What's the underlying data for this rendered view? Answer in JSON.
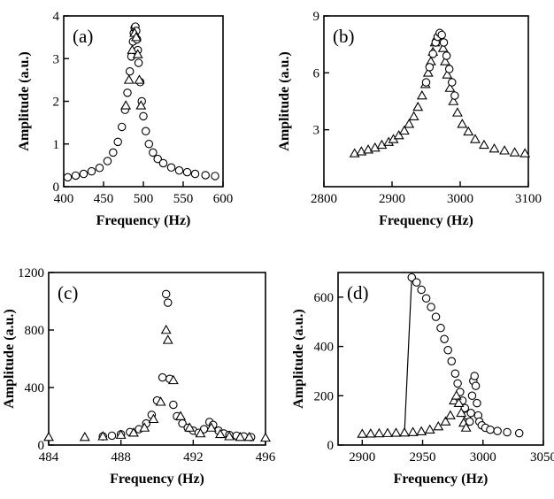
{
  "chart_data": [
    {
      "panel_label": "(a)",
      "type": "scatter",
      "xlabel": "Frequency (Hz)",
      "ylabel": "Amplitude (a.u.)",
      "xlim": [
        400,
        600
      ],
      "ylim": [
        0,
        4
      ],
      "xticks": [
        "400",
        "450",
        "500",
        "550",
        "600"
      ],
      "yticks": [
        "0",
        "1",
        "2",
        "3",
        "4"
      ],
      "series": [
        {
          "marker": "circle",
          "x": [
            405,
            415,
            425,
            435,
            445,
            455,
            462,
            468,
            473,
            477,
            480,
            483,
            485,
            487,
            488,
            489,
            490,
            491,
            492,
            493,
            494,
            496,
            498,
            500,
            503,
            507,
            512,
            518,
            525,
            535,
            545,
            555,
            565,
            578,
            590
          ],
          "y": [
            0.22,
            0.26,
            0.3,
            0.36,
            0.44,
            0.6,
            0.8,
            1.05,
            1.4,
            1.8,
            2.2,
            2.7,
            3.05,
            3.4,
            3.6,
            3.72,
            3.75,
            3.65,
            3.45,
            3.2,
            2.9,
            2.45,
            2.0,
            1.65,
            1.3,
            1.0,
            0.8,
            0.65,
            0.55,
            0.45,
            0.38,
            0.34,
            0.3,
            0.27,
            0.25
          ]
        },
        {
          "marker": "triangle",
          "x": [
            478,
            482,
            486,
            489,
            491,
            493,
            495,
            497
          ],
          "y": [
            1.9,
            2.5,
            3.2,
            3.6,
            3.5,
            3.1,
            2.5,
            1.9
          ]
        }
      ]
    },
    {
      "panel_label": "(b)",
      "type": "scatter",
      "xlabel": "Frequency (Hz)",
      "ylabel": "Amplitude (a.u.)",
      "xlim": [
        2800,
        3100
      ],
      "ylim": [
        0,
        9
      ],
      "xticks": [
        "2800",
        "2900",
        "3000",
        "3100"
      ],
      "yticks": [
        "3",
        "6",
        "9"
      ],
      "series": [
        {
          "marker": "triangle",
          "x": [
            2845,
            2855,
            2865,
            2875,
            2885,
            2895,
            2902,
            2910,
            2918,
            2925,
            2932,
            2938,
            2944,
            2949,
            2953,
            2957,
            2960,
            2963,
            2966,
            2969,
            2972,
            2975,
            2978,
            2981,
            2985,
            2990,
            2996,
            3003,
            3012,
            3022,
            3035,
            3050,
            3065,
            3080,
            3095
          ],
          "y": [
            1.75,
            1.85,
            1.95,
            2.05,
            2.2,
            2.35,
            2.5,
            2.7,
            2.95,
            3.3,
            3.7,
            4.2,
            4.8,
            5.4,
            6.0,
            6.6,
            7.1,
            7.6,
            7.9,
            8.0,
            7.8,
            7.3,
            6.6,
            5.9,
            5.2,
            4.5,
            3.9,
            3.3,
            2.9,
            2.5,
            2.2,
            2.0,
            1.9,
            1.8,
            1.75
          ]
        },
        {
          "marker": "circle",
          "x": [
            2950,
            2955,
            2960,
            2964,
            2967,
            2970,
            2973,
            2976,
            2980,
            2984,
            2988,
            2992
          ],
          "y": [
            5.5,
            6.3,
            7.0,
            7.6,
            7.9,
            8.1,
            8.0,
            7.6,
            6.9,
            6.2,
            5.5,
            4.8
          ]
        }
      ]
    },
    {
      "panel_label": "(c)",
      "type": "scatter",
      "xlabel": "Frequency (Hz)",
      "ylabel": "Amplitude (a.u.)",
      "xlim": [
        484,
        496
      ],
      "ylim": [
        0,
        1200
      ],
      "xticks": [
        "484",
        "488",
        "492",
        "496"
      ],
      "yticks": [
        "0",
        "400",
        "800",
        "1200"
      ],
      "series": [
        {
          "marker": "circle",
          "x": [
            487,
            487.5,
            488,
            488.5,
            489,
            489.4,
            489.7,
            490,
            490.3,
            490.5,
            490.6,
            490.7,
            490.9,
            491.1,
            491.4,
            491.7,
            492,
            492.3,
            492.6,
            492.9,
            493.1,
            493.4,
            493.7,
            494,
            494.4,
            494.8,
            495.2
          ],
          "y": [
            60,
            65,
            75,
            90,
            110,
            150,
            210,
            310,
            470,
            1050,
            990,
            460,
            280,
            200,
            150,
            120,
            100,
            85,
            110,
            160,
            140,
            100,
            80,
            70,
            65,
            60,
            55
          ]
        },
        {
          "marker": "triangle",
          "x": [
            484,
            486,
            487,
            488,
            488.7,
            489.3,
            489.8,
            490.2,
            490.5,
            490.6,
            490.9,
            491.3,
            491.8,
            492.4,
            493,
            493.5,
            494,
            494.6,
            495.1,
            496
          ],
          "y": [
            55,
            55,
            60,
            70,
            85,
            120,
            180,
            300,
            800,
            730,
            450,
            200,
            120,
            80,
            120,
            75,
            60,
            55,
            55,
            50
          ]
        }
      ]
    },
    {
      "panel_label": "(d)",
      "type": "scatter",
      "xlabel": "Frequency (Hz)",
      "ylabel": "Amplitude (a.u.)",
      "xlim": [
        2880,
        3050
      ],
      "ylim": [
        0,
        700
      ],
      "xticks": [
        "2900",
        "2950",
        "3000",
        "3050"
      ],
      "yticks": [
        "0",
        "200",
        "400",
        "600"
      ],
      "series": [
        {
          "marker": "circle",
          "x": [
            2941,
            2945,
            2949,
            2953,
            2957,
            2961,
            2965,
            2968,
            2971,
            2974,
            2977,
            2979,
            2981,
            2983,
            2985,
            2987,
            2989,
            2990,
            2991,
            2992,
            2993,
            2994,
            2995,
            2996,
            2997,
            2999,
            3002,
            3006,
            3012,
            3020,
            3030
          ],
          "y": [
            680,
            660,
            630,
            595,
            560,
            520,
            475,
            430,
            385,
            340,
            290,
            250,
            215,
            180,
            150,
            120,
            95,
            130,
            200,
            260,
            280,
            240,
            170,
            120,
            95,
            80,
            70,
            62,
            57,
            52,
            48
          ]
        },
        {
          "marker": "triangle",
          "x": [
            2900,
            2907,
            2914,
            2921,
            2928,
            2935,
            2942,
            2949,
            2956,
            2963,
            2969,
            2973,
            2976,
            2978,
            2980,
            2982,
            2984,
            2986
          ],
          "y": [
            45,
            46,
            47,
            48,
            49,
            50,
            52,
            55,
            62,
            75,
            95,
            120,
            180,
            200,
            170,
            130,
            90,
            70
          ]
        }
      ],
      "jump_line": {
        "x": [
          2935,
          2941
        ],
        "y": [
          50,
          680
        ]
      }
    }
  ]
}
